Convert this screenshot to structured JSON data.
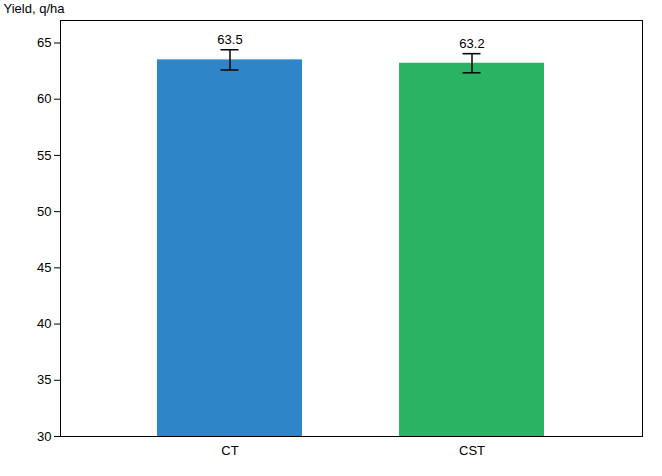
{
  "chart_data": {
    "type": "bar",
    "categories": [
      "CT",
      "CST"
    ],
    "values": [
      63.5,
      63.2
    ],
    "errors": [
      0.9,
      0.85
    ],
    "colors": [
      "#2e86c8",
      "#28b463"
    ],
    "ylabel": "Yield, q/ha",
    "ylim": [
      30,
      67
    ],
    "yticks": [
      30,
      35,
      40,
      45,
      50,
      55,
      60,
      65
    ],
    "grid": false,
    "data_labels": true
  }
}
